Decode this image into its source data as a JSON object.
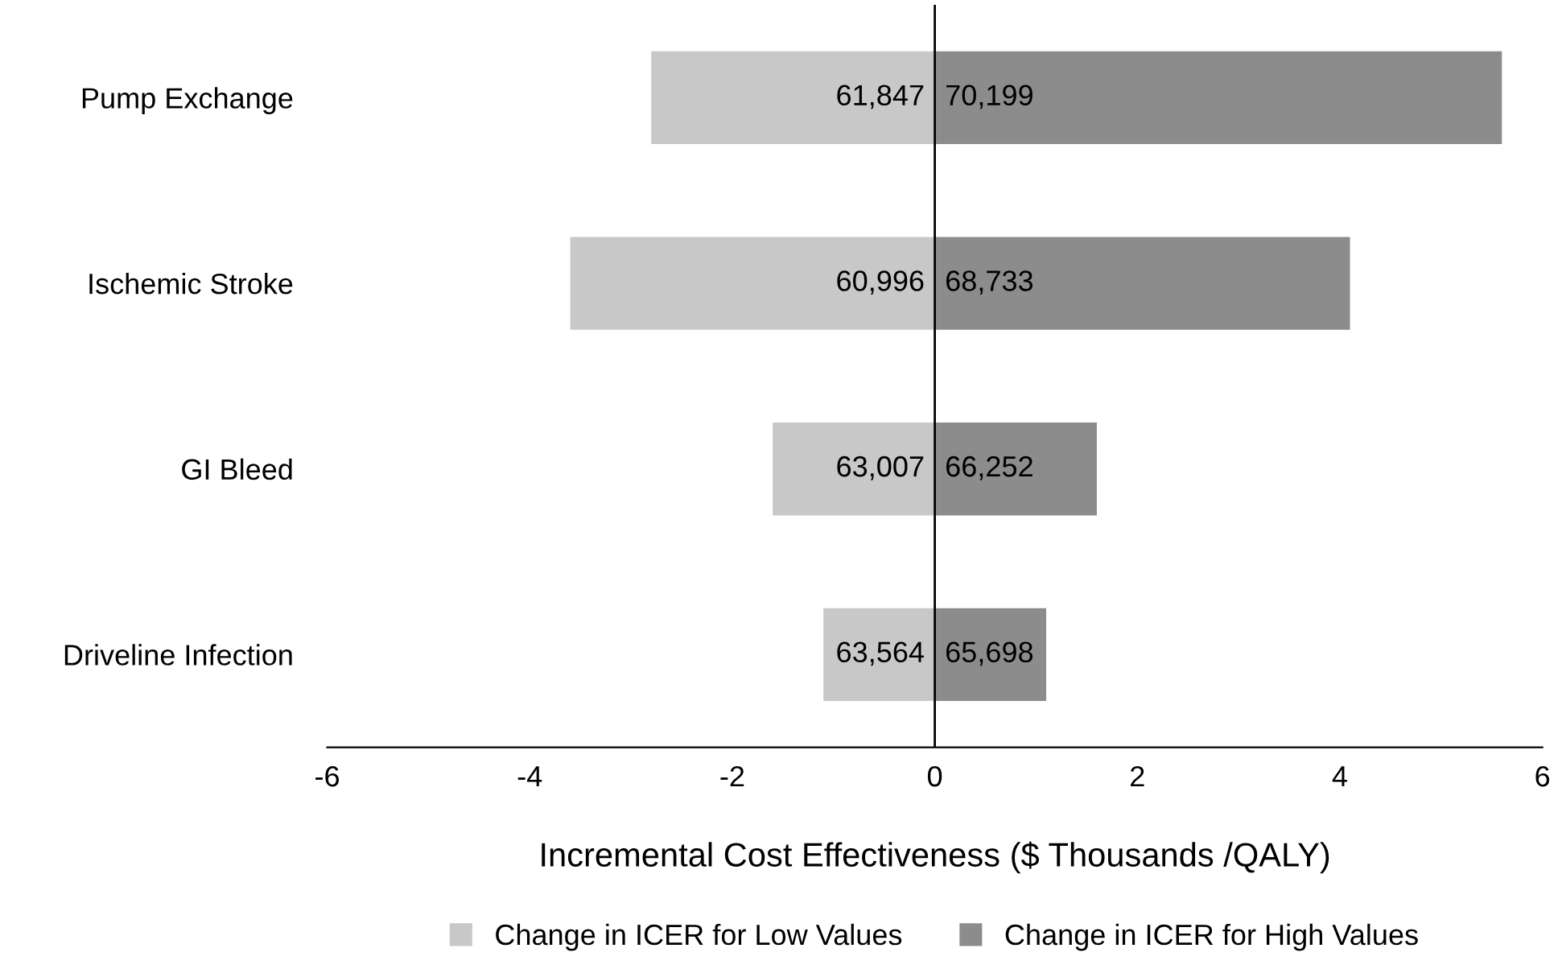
{
  "chart_data": {
    "type": "bar",
    "orientation": "horizontal",
    "stacked": true,
    "categories": [
      "Pump Exchange",
      "Ischemic Stroke",
      "GI Bleed",
      "Driveline Infection"
    ],
    "series": [
      {
        "name": "Change in ICER for Low Values",
        "color": "#c8c8c8",
        "values": [
          -2.8,
          -3.6,
          -1.6,
          -1.1
        ]
      },
      {
        "name": "Change in ICER for High Values",
        "color": "#8c8c8c",
        "values": [
          5.6,
          4.1,
          1.6,
          1.1
        ]
      }
    ],
    "annotations": [
      "61,847",
      "60,996",
      "63,007",
      "63,564",
      "70,199",
      "68,733",
      "66,252",
      "65,698"
    ],
    "ref_lines": [
      {
        "axis": "x",
        "value": 0,
        "color": "#000000"
      }
    ],
    "xlim": [
      -6,
      6
    ],
    "xticks": [
      -6,
      -4,
      -2,
      0,
      2,
      4,
      6
    ],
    "xlabel": "Incremental Cost Effectiveness ($ Thousands /QALY)",
    "grid": false,
    "legend": "bottom"
  }
}
